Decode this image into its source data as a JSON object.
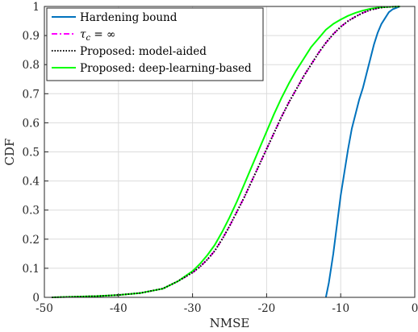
{
  "chart_data": {
    "type": "line",
    "xlabel": "NMSE",
    "ylabel": "CDF",
    "xlim": [
      -50,
      0
    ],
    "ylim": [
      0,
      1
    ],
    "xticks": [
      -50,
      -40,
      -30,
      -20,
      -10,
      0
    ],
    "yticks": [
      0,
      0.1,
      0.2,
      0.3,
      0.4,
      0.5,
      0.6,
      0.7,
      0.8,
      0.9,
      1
    ],
    "grid": true,
    "legend_position": "top-left",
    "series": [
      {
        "name": "Hardening bound",
        "color": "#0072BD",
        "line_style": "solid",
        "x": [
          -12.0,
          -11.6,
          -11.0,
          -10.5,
          -10.0,
          -9.5,
          -9.0,
          -8.5,
          -8.0,
          -7.5,
          -7.0,
          -6.5,
          -6.0,
          -5.5,
          -5.0,
          -4.5,
          -4.0,
          -3.5,
          -3.0,
          -2.5,
          -2.0
        ],
        "y": [
          0.0,
          0.05,
          0.15,
          0.25,
          0.35,
          0.43,
          0.51,
          0.58,
          0.63,
          0.68,
          0.72,
          0.77,
          0.82,
          0.87,
          0.91,
          0.94,
          0.96,
          0.98,
          0.99,
          0.995,
          1.0
        ]
      },
      {
        "name": "$\\tau_c = \\infty$",
        "color": "#FF00FF",
        "line_style": "dashdot",
        "x": [
          -49,
          -46,
          -43,
          -40,
          -37,
          -34,
          -32,
          -30,
          -29,
          -28,
          -27,
          -26,
          -25,
          -24,
          -23,
          -22,
          -21,
          -20,
          -19,
          -18,
          -17,
          -16,
          -15,
          -14,
          -13,
          -12,
          -11,
          -10,
          -9,
          -8,
          -7,
          -6,
          -5,
          -4,
          -3,
          -2
        ],
        "y": [
          0.0,
          0.002,
          0.004,
          0.008,
          0.015,
          0.03,
          0.055,
          0.085,
          0.105,
          0.13,
          0.16,
          0.2,
          0.245,
          0.295,
          0.345,
          0.4,
          0.455,
          0.51,
          0.565,
          0.62,
          0.67,
          0.715,
          0.76,
          0.8,
          0.84,
          0.875,
          0.905,
          0.93,
          0.95,
          0.965,
          0.978,
          0.988,
          0.994,
          0.998,
          0.999,
          1.0
        ]
      },
      {
        "name": "Proposed: model-aided",
        "color": "#000000",
        "line_style": "dotted",
        "x": [
          -49,
          -46,
          -43,
          -40,
          -37,
          -34,
          -32,
          -30,
          -29,
          -28,
          -27,
          -26,
          -25,
          -24,
          -23,
          -22,
          -21,
          -20,
          -19,
          -18,
          -17,
          -16,
          -15,
          -14,
          -13,
          -12,
          -11,
          -10,
          -9,
          -8,
          -7,
          -6,
          -5,
          -4,
          -3,
          -2
        ],
        "y": [
          0.0,
          0.002,
          0.004,
          0.008,
          0.015,
          0.03,
          0.055,
          0.085,
          0.105,
          0.13,
          0.16,
          0.2,
          0.245,
          0.295,
          0.345,
          0.4,
          0.455,
          0.51,
          0.565,
          0.62,
          0.67,
          0.715,
          0.76,
          0.8,
          0.84,
          0.875,
          0.905,
          0.93,
          0.95,
          0.965,
          0.978,
          0.988,
          0.994,
          0.998,
          0.999,
          1.0
        ]
      },
      {
        "name": "Proposed: deep-learning-based",
        "color": "#00FF00",
        "line_style": "solid",
        "x": [
          -49,
          -46,
          -43,
          -40,
          -37,
          -34,
          -32,
          -30,
          -29,
          -28,
          -27,
          -26,
          -25,
          -24,
          -23,
          -22,
          -21,
          -20,
          -19,
          -18,
          -17,
          -16,
          -15,
          -14,
          -13,
          -12,
          -11,
          -10,
          -9,
          -8,
          -7,
          -6,
          -5,
          -4,
          -3,
          -2
        ],
        "y": [
          0.0,
          0.002,
          0.004,
          0.008,
          0.015,
          0.03,
          0.055,
          0.09,
          0.115,
          0.145,
          0.18,
          0.225,
          0.275,
          0.33,
          0.39,
          0.45,
          0.51,
          0.57,
          0.63,
          0.685,
          0.735,
          0.78,
          0.82,
          0.86,
          0.89,
          0.92,
          0.94,
          0.955,
          0.968,
          0.978,
          0.986,
          0.992,
          0.996,
          0.998,
          0.999,
          1.0
        ]
      }
    ]
  }
}
